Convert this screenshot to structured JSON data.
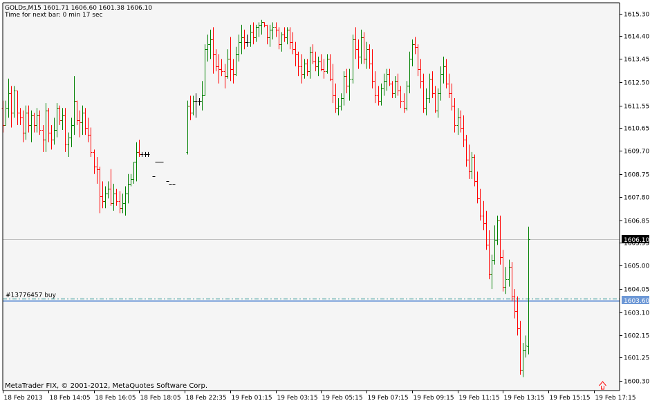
{
  "window": {
    "symbol_line": "GOLDs,M15  1601.71 1606.60 1601.38 1606.10",
    "timer_line": "Time for next bar: 0 min 17 sec",
    "copyright": "MetaTrader FIX, © 2001-2012, MetaQuotes Software Corp."
  },
  "colors": {
    "background": "#f5f5f5",
    "bull": "#008000",
    "bear": "#ff0000",
    "neutral": "#000000",
    "order_line": "#6d98d6",
    "order_dash": "#008080",
    "current_price_line": "#c0c0c0",
    "current_price_tag_bg": "#000000",
    "order_tag_bg": "#6d98d6"
  },
  "order": {
    "label": "#13776457 buy",
    "price": 1603.6,
    "price_label": "1603.60"
  },
  "current_price": {
    "price": 1606.1,
    "price_label": "1606.10"
  },
  "chart_data": {
    "type": "candlestick",
    "title": "GOLDs,M15",
    "ylim": [
      1599.9,
      1615.75
    ],
    "y_ticks": [
      1615.3,
      1614.4,
      1613.45,
      1612.5,
      1611.55,
      1610.65,
      1609.7,
      1608.75,
      1607.8,
      1606.85,
      1605.95,
      1605.0,
      1604.05,
      1603.1,
      1602.15,
      1601.25,
      1600.3
    ],
    "y_tick_labels": [
      "1615.30",
      "1614.40",
      "1613.45",
      "1612.50",
      "1611.55",
      "1610.65",
      "1609.70",
      "1608.75",
      "1607.80",
      "1606.85",
      "1605.95",
      "1605.00",
      "1604.05",
      "1603.10",
      "1602.15",
      "1601.25",
      "1600.30"
    ],
    "x_labels": [
      "18 Feb 2013",
      "18 Feb 14:05",
      "18 Feb 16:05",
      "18 Feb 18:05",
      "18 Feb 22:35",
      "19 Feb 01:15",
      "19 Feb 03:15",
      "19 Feb 05:15",
      "19 Feb 07:15",
      "19 Feb 09:15",
      "19 Feb 11:15",
      "19 Feb 13:15",
      "19 Feb 15:15",
      "19 Feb 17:15"
    ],
    "x_label_bars": [
      0,
      16,
      32,
      48,
      64,
      80,
      96,
      112,
      128,
      144,
      160,
      176,
      192,
      208
    ],
    "grid": false,
    "ohlc": [
      [
        1611.45,
        1611.75,
        1610.45,
        1610.75
      ],
      [
        1610.75,
        1611.75,
        1610.75,
        1611.45
      ],
      [
        1611.45,
        1612.65,
        1611.05,
        1612.05
      ],
      [
        1612.05,
        1612.35,
        1610.65,
        1611.25
      ],
      [
        1611.25,
        1612.35,
        1611.05,
        1612.15
      ],
      [
        1612.15,
        1612.15,
        1610.75,
        1611.25
      ],
      [
        1611.25,
        1611.45,
        1610.75,
        1611.05
      ],
      [
        1611.05,
        1611.35,
        1610.05,
        1610.45
      ],
      [
        1610.45,
        1611.55,
        1610.15,
        1611.25
      ],
      [
        1611.25,
        1611.55,
        1610.45,
        1610.75
      ],
      [
        1610.75,
        1611.35,
        1610.05,
        1611.15
      ],
      [
        1611.15,
        1611.25,
        1610.45,
        1610.75
      ],
      [
        1610.75,
        1611.45,
        1610.45,
        1611.15
      ],
      [
        1611.15,
        1611.35,
        1610.35,
        1610.55
      ],
      [
        1610.55,
        1610.75,
        1609.65,
        1610.15
      ],
      [
        1610.15,
        1611.65,
        1609.65,
        1611.35
      ],
      [
        1611.35,
        1611.45,
        1610.05,
        1610.45
      ],
      [
        1610.45,
        1610.75,
        1609.75,
        1610.15
      ],
      [
        1610.15,
        1611.05,
        1609.95,
        1610.55
      ],
      [
        1610.55,
        1611.65,
        1610.25,
        1611.45
      ],
      [
        1611.45,
        1611.55,
        1610.75,
        1610.95
      ],
      [
        1610.95,
        1611.45,
        1610.55,
        1611.15
      ],
      [
        1611.15,
        1611.45,
        1609.65,
        1609.95
      ],
      [
        1609.95,
        1610.45,
        1609.45,
        1610.25
      ],
      [
        1610.25,
        1611.05,
        1609.85,
        1610.75
      ],
      [
        1610.75,
        1612.75,
        1610.35,
        1611.75
      ],
      [
        1611.75,
        1611.75,
        1610.75,
        1610.95
      ],
      [
        1610.95,
        1611.35,
        1610.25,
        1610.85
      ],
      [
        1610.85,
        1611.55,
        1610.35,
        1611.25
      ],
      [
        1611.25,
        1611.45,
        1610.35,
        1610.65
      ],
      [
        1610.65,
        1611.05,
        1610.05,
        1610.35
      ],
      [
        1610.35,
        1610.65,
        1609.45,
        1609.65
      ],
      [
        1609.65,
        1609.75,
        1608.75,
        1609.05
      ],
      [
        1609.05,
        1609.45,
        1608.35,
        1608.95
      ],
      [
        1608.95,
        1609.05,
        1607.15,
        1607.85
      ],
      [
        1607.85,
        1608.45,
        1607.35,
        1607.65
      ],
      [
        1607.65,
        1608.25,
        1607.35,
        1607.95
      ],
      [
        1607.95,
        1608.45,
        1607.75,
        1608.15
      ],
      [
        1608.15,
        1608.95,
        1607.45,
        1607.55
      ],
      [
        1607.55,
        1608.35,
        1607.25,
        1607.95
      ],
      [
        1607.95,
        1608.15,
        1607.45,
        1607.65
      ],
      [
        1607.65,
        1608.05,
        1607.15,
        1607.35
      ],
      [
        1607.35,
        1607.95,
        1607.15,
        1607.55
      ],
      [
        1607.55,
        1608.25,
        1607.05,
        1607.95
      ],
      [
        1607.95,
        1608.75,
        1607.55,
        1608.35
      ],
      [
        1608.35,
        1608.75,
        1608.25,
        1608.55
      ],
      [
        1608.55,
        1609.25,
        1608.35,
        1609.25
      ],
      [
        1609.25,
        1610.05,
        1608.45,
        1609.65
      ],
      [
        1609.65,
        1610.15,
        1609.45,
        1609.55
      ],
      [
        1609.55,
        1609.65,
        1609.45,
        1609.55
      ],
      [
        1609.55,
        1609.65,
        1609.45,
        1609.55
      ],
      [
        1609.55,
        1609.65,
        1609.45,
        1609.55
      ],
      [
        null,
        null,
        null,
        null
      ],
      [
        1608.65,
        1608.65,
        1608.65,
        1608.65
      ],
      [
        1609.25,
        1609.25,
        1609.25,
        1609.25
      ],
      [
        1609.25,
        1609.25,
        1609.25,
        1609.25
      ],
      [
        1609.25,
        1609.25,
        1609.25,
        1609.25
      ],
      [
        null,
        null,
        null,
        null
      ],
      [
        1608.45,
        1608.45,
        1608.45,
        1608.45
      ],
      [
        1608.35,
        1608.35,
        1608.35,
        1608.35
      ],
      [
        1608.35,
        1608.35,
        1608.35,
        1608.35
      ],
      [
        null,
        null,
        null,
        null
      ],
      [
        null,
        null,
        null,
        null
      ],
      [
        null,
        null,
        null,
        null
      ],
      [
        null,
        null,
        null,
        null
      ],
      [
        1609.65,
        1611.75,
        1609.55,
        1611.55
      ],
      [
        1611.55,
        1611.95,
        1610.95,
        1611.25
      ],
      [
        1611.25,
        1611.95,
        1611.15,
        1611.75
      ],
      [
        1611.75,
        1612.05,
        1611.05,
        1611.75
      ],
      [
        1611.75,
        1611.85,
        1611.55,
        1611.75
      ],
      [
        1611.75,
        1612.55,
        1611.35,
        1611.95
      ],
      [
        1611.95,
        1614.05,
        1611.95,
        1613.85
      ],
      [
        1613.85,
        1614.45,
        1613.35,
        1614.05
      ],
      [
        1614.05,
        1614.65,
        1613.45,
        1614.25
      ],
      [
        1614.25,
        1614.75,
        1612.85,
        1613.65
      ],
      [
        1613.65,
        1613.85,
        1612.95,
        1613.15
      ],
      [
        1613.15,
        1613.65,
        1612.45,
        1613.05
      ],
      [
        1613.05,
        1613.45,
        1612.75,
        1612.95
      ],
      [
        1612.95,
        1613.25,
        1612.25,
        1612.75
      ],
      [
        1612.75,
        1613.85,
        1612.65,
        1613.45
      ],
      [
        1613.45,
        1614.35,
        1612.55,
        1613.05
      ],
      [
        1613.05,
        1613.45,
        1612.45,
        1612.85
      ],
      [
        1612.85,
        1613.95,
        1612.75,
        1613.65
      ],
      [
        1613.65,
        1614.45,
        1613.35,
        1614.15
      ],
      [
        1614.15,
        1614.85,
        1613.65,
        1614.35
      ],
      [
        1614.35,
        1614.65,
        1613.85,
        1614.15
      ],
      [
        1614.15,
        1614.45,
        1613.95,
        1614.15
      ],
      [
        1614.15,
        1614.85,
        1613.95,
        1614.55
      ],
      [
        1614.55,
        1614.95,
        1614.05,
        1614.35
      ],
      [
        1614.35,
        1614.85,
        1614.15,
        1614.75
      ],
      [
        1614.75,
        1614.95,
        1614.35,
        1614.85
      ],
      [
        1614.85,
        1615.05,
        1614.45,
        1614.95
      ],
      [
        1614.95,
        1614.95,
        1614.75,
        1614.85
      ],
      [
        1614.85,
        1614.85,
        1614.05,
        1614.35
      ],
      [
        1614.35,
        1614.85,
        1613.95,
        1614.65
      ],
      [
        1614.65,
        1614.95,
        1614.25,
        1614.75
      ],
      [
        1614.75,
        1614.95,
        1614.35,
        1614.65
      ],
      [
        1614.65,
        1614.75,
        1613.85,
        1614.05
      ],
      [
        1614.05,
        1614.55,
        1613.75,
        1614.45
      ],
      [
        1614.45,
        1614.75,
        1614.15,
        1614.35
      ],
      [
        1614.35,
        1614.75,
        1614.05,
        1614.65
      ],
      [
        1614.65,
        1614.75,
        1613.85,
        1614.15
      ],
      [
        1614.15,
        1614.55,
        1613.65,
        1613.85
      ],
      [
        1613.85,
        1614.15,
        1613.15,
        1613.65
      ],
      [
        1613.65,
        1613.75,
        1612.75,
        1613.15
      ],
      [
        1613.15,
        1613.65,
        1612.45,
        1612.85
      ],
      [
        1612.85,
        1613.45,
        1612.65,
        1613.25
      ],
      [
        1613.25,
        1613.45,
        1612.75,
        1612.95
      ],
      [
        1612.95,
        1613.95,
        1612.65,
        1613.75
      ],
      [
        1613.75,
        1614.05,
        1613.25,
        1613.35
      ],
      [
        1613.35,
        1613.75,
        1612.95,
        1613.15
      ],
      [
        1613.15,
        1613.55,
        1612.75,
        1613.35
      ],
      [
        1613.35,
        1613.65,
        1612.95,
        1613.05
      ],
      [
        1613.05,
        1613.45,
        1612.65,
        1612.95
      ],
      [
        1612.95,
        1613.65,
        1612.85,
        1613.45
      ],
      [
        1613.45,
        1613.65,
        1612.55,
        1612.65
      ],
      [
        1612.65,
        1613.25,
        1611.65,
        1611.95
      ],
      [
        1611.95,
        1612.45,
        1611.25,
        1611.45
      ],
      [
        1611.45,
        1611.85,
        1611.15,
        1611.55
      ],
      [
        1611.55,
        1612.05,
        1611.35,
        1611.85
      ],
      [
        1611.85,
        1612.95,
        1611.55,
        1612.75
      ],
      [
        1612.75,
        1613.05,
        1612.05,
        1612.35
      ],
      [
        1612.35,
        1613.05,
        1611.75,
        1612.65
      ],
      [
        1612.65,
        1614.45,
        1612.45,
        1614.25
      ],
      [
        1614.25,
        1614.75,
        1613.45,
        1613.85
      ],
      [
        1613.85,
        1614.25,
        1613.05,
        1613.55
      ],
      [
        1613.55,
        1614.65,
        1613.25,
        1614.35
      ],
      [
        1614.35,
        1614.55,
        1613.25,
        1613.45
      ],
      [
        1613.45,
        1614.15,
        1613.05,
        1613.85
      ],
      [
        1613.85,
        1614.05,
        1613.05,
        1613.25
      ],
      [
        1613.25,
        1613.85,
        1612.25,
        1612.55
      ],
      [
        1612.55,
        1612.95,
        1611.65,
        1611.95
      ],
      [
        1611.95,
        1612.35,
        1611.55,
        1611.75
      ],
      [
        1611.75,
        1612.45,
        1611.55,
        1612.25
      ],
      [
        1612.25,
        1612.85,
        1611.95,
        1612.55
      ],
      [
        1612.55,
        1613.05,
        1612.15,
        1612.85
      ],
      [
        1612.85,
        1613.05,
        1612.35,
        1612.45
      ],
      [
        1612.45,
        1612.55,
        1611.85,
        1612.05
      ],
      [
        1612.05,
        1612.75,
        1611.85,
        1612.55
      ],
      [
        1612.55,
        1612.85,
        1611.95,
        1612.15
      ],
      [
        1612.15,
        1612.35,
        1611.45,
        1611.75
      ],
      [
        1611.75,
        1612.05,
        1611.25,
        1611.45
      ],
      [
        1611.45,
        1612.55,
        1611.35,
        1612.35
      ],
      [
        1612.35,
        1613.75,
        1612.05,
        1613.45
      ],
      [
        1613.45,
        1614.25,
        1613.15,
        1614.05
      ],
      [
        1614.05,
        1614.35,
        1613.65,
        1613.95
      ],
      [
        1613.95,
        1614.05,
        1612.75,
        1613.05
      ],
      [
        1613.05,
        1613.45,
        1612.25,
        1612.55
      ],
      [
        1612.55,
        1612.85,
        1611.25,
        1611.45
      ],
      [
        1611.45,
        1612.25,
        1611.15,
        1611.85
      ],
      [
        1611.85,
        1612.85,
        1611.65,
        1612.65
      ],
      [
        1612.65,
        1612.95,
        1611.85,
        1612.05
      ],
      [
        1612.05,
        1612.35,
        1611.25,
        1611.35
      ],
      [
        1611.35,
        1612.25,
        1611.05,
        1612.05
      ],
      [
        1612.05,
        1613.15,
        1611.75,
        1612.85
      ],
      [
        1612.85,
        1613.55,
        1612.45,
        1613.15
      ],
      [
        1613.15,
        1613.45,
        1612.25,
        1612.45
      ],
      [
        1612.45,
        1612.85,
        1611.85,
        1612.05
      ],
      [
        1612.05,
        1612.45,
        1611.35,
        1611.55
      ],
      [
        1611.55,
        1611.85,
        1610.45,
        1610.75
      ],
      [
        1610.75,
        1611.45,
        1610.35,
        1611.05
      ],
      [
        1611.05,
        1611.35,
        1610.45,
        1610.65
      ],
      [
        1610.65,
        1611.15,
        1609.85,
        1610.15
      ],
      [
        1610.15,
        1610.35,
        1609.05,
        1609.35
      ],
      [
        1609.35,
        1609.95,
        1608.55,
        1608.85
      ],
      [
        1608.85,
        1609.65,
        1608.55,
        1609.45
      ],
      [
        1609.45,
        1609.55,
        1608.25,
        1608.45
      ],
      [
        1608.45,
        1608.85,
        1607.55,
        1607.75
      ],
      [
        1607.75,
        1608.15,
        1606.85,
        1607.05
      ],
      [
        1607.05,
        1607.65,
        1606.45,
        1606.75
      ],
      [
        1606.75,
        1607.25,
        1605.65,
        1605.85
      ],
      [
        1605.85,
        1606.45,
        1604.45,
        1604.65
      ],
      [
        1604.65,
        1605.45,
        1604.05,
        1605.25
      ],
      [
        1605.25,
        1606.65,
        1605.05,
        1606.05
      ],
      [
        1606.05,
        1607.05,
        1605.85,
        1606.85
      ],
      [
        1606.85,
        1607.05,
        1605.05,
        1605.35
      ],
      [
        1605.35,
        1605.65,
        1603.95,
        1604.15
      ],
      [
        1604.15,
        1604.95,
        1603.85,
        1604.45
      ],
      [
        1604.45,
        1605.25,
        1604.15,
        1604.95
      ],
      [
        1604.95,
        1605.15,
        1603.55,
        1603.75
      ],
      [
        1603.75,
        1604.05,
        1602.85,
        1603.15
      ],
      [
        1603.15,
        1603.75,
        1602.15,
        1602.45
      ],
      [
        1602.45,
        1602.75,
        1600.55,
        1600.75
      ],
      [
        1600.75,
        1601.85,
        1600.45,
        1601.55
      ],
      [
        1601.55,
        1602.15,
        1601.25,
        1601.75
      ],
      [
        1601.71,
        1606.6,
        1601.38,
        1606.1
      ]
    ]
  }
}
